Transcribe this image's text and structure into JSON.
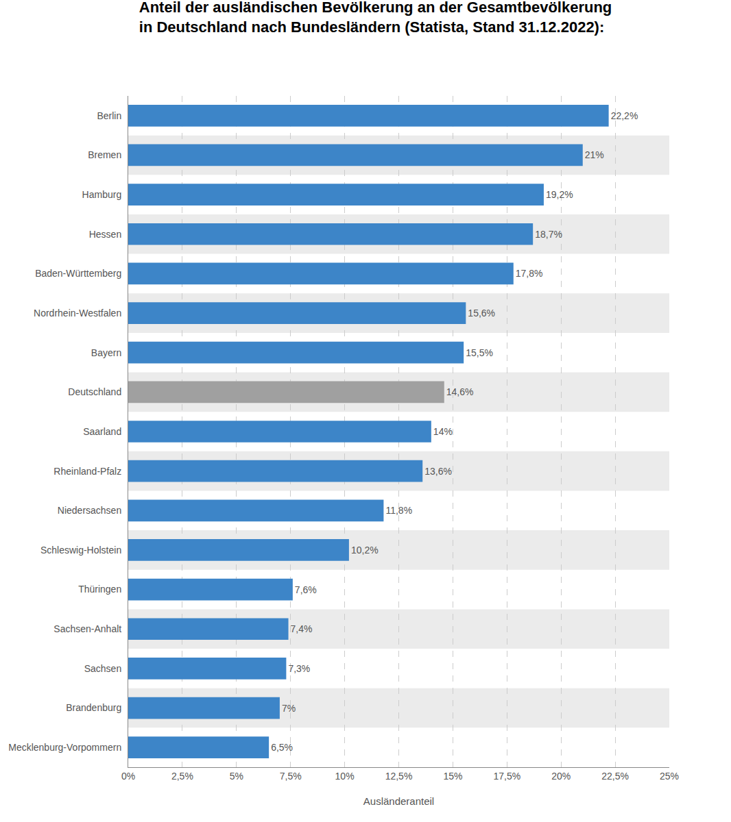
{
  "chart_data": {
    "type": "bar",
    "orientation": "horizontal",
    "title": "Anteil der ausländischen Bevölkerung an der Gesamtbevölkerung\nin Deutschland nach Bundesländern (Statista, Stand 31.12.2022):",
    "xlabel": "Ausländeranteil",
    "categories": [
      "Berlin",
      "Bremen",
      "Hamburg",
      "Hessen",
      "Baden-Württemberg",
      "Nordrhein-Westfalen",
      "Bayern",
      "Deutschland",
      "Saarland",
      "Rheinland-Pfalz",
      "Niedersachsen",
      "Schleswig-Holstein",
      "Thüringen",
      "Sachsen-Anhalt",
      "Sachsen",
      "Brandenburg",
      "Mecklenburg-Vorpommern"
    ],
    "values": [
      22.2,
      21.0,
      19.2,
      18.7,
      17.8,
      15.6,
      15.5,
      14.6,
      14.0,
      13.6,
      11.8,
      10.2,
      7.6,
      7.4,
      7.3,
      7.0,
      6.5
    ],
    "value_labels": [
      "22,2%",
      "21%",
      "19,2%",
      "18,7%",
      "17,8%",
      "15,6%",
      "15,5%",
      "14,6%",
      "14%",
      "13,6%",
      "11,8%",
      "10,2%",
      "7,6%",
      "7,4%",
      "7,3%",
      "7%",
      "6,5%"
    ],
    "data_labels": true,
    "colors": [
      "#3d85c8",
      "#3d85c8",
      "#3d85c8",
      "#3d85c8",
      "#3d85c8",
      "#3d85c8",
      "#3d85c8",
      "#a0a0a0",
      "#3d85c8",
      "#3d85c8",
      "#3d85c8",
      "#3d85c8",
      "#3d85c8",
      "#3d85c8",
      "#3d85c8",
      "#3d85c8",
      "#3d85c8"
    ],
    "xlim": [
      0,
      25
    ],
    "xticks": [
      {
        "value": 0,
        "label": "0%"
      },
      {
        "value": 2.5,
        "label": "2,5%"
      },
      {
        "value": 5,
        "label": "5%"
      },
      {
        "value": 7.5,
        "label": "7,5%"
      },
      {
        "value": 10,
        "label": "10%"
      },
      {
        "value": 12.5,
        "label": "12,5%"
      },
      {
        "value": 15,
        "label": "15%"
      },
      {
        "value": 17.5,
        "label": "17,5%"
      },
      {
        "value": 20,
        "label": "20%"
      },
      {
        "value": 22.5,
        "label": "22,5%"
      },
      {
        "value": 25,
        "label": "25%"
      }
    ],
    "grid": true
  }
}
